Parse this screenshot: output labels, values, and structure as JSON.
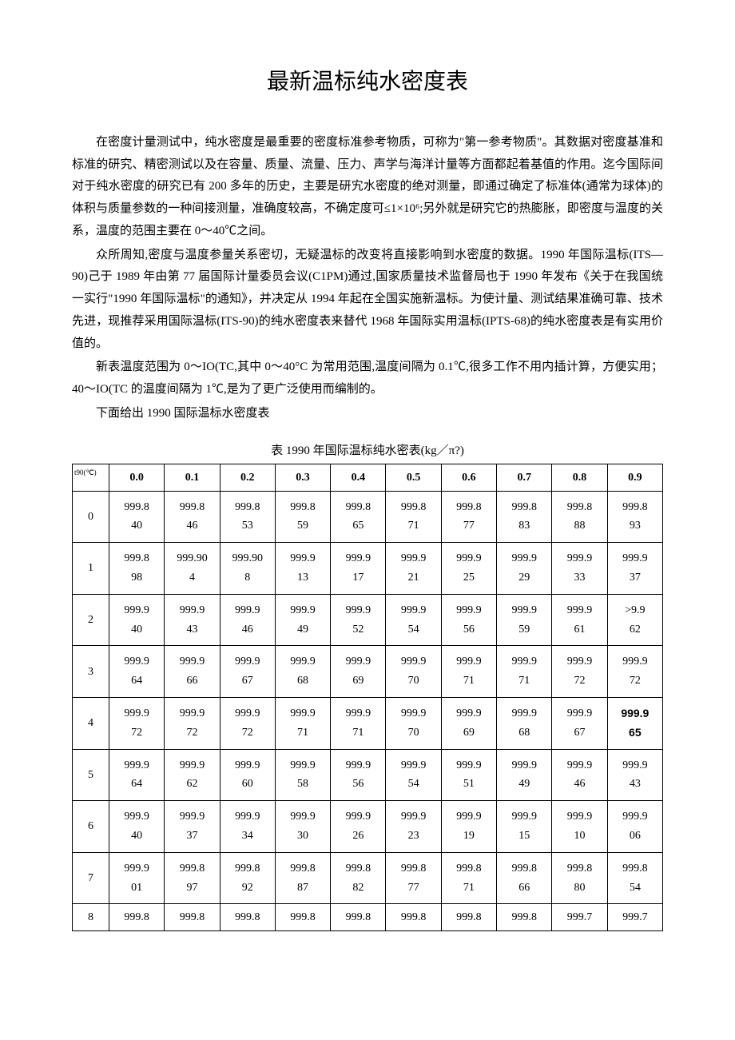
{
  "title": "最新温标纯水密度表",
  "paragraphs": [
    "在密度计量测试中，纯水密度是最重要的密度标准参考物质，可称为\"第一参考物质\"。其数据对密度基准和标准的研究、精密测试以及在容量、质量、流量、压力、声学与海洋计量等方面都起着基值的作用。迄今国际间对于纯水密度的研究已有 200 多年的历史，主要是研宄水密度的绝对测量，即通过确定了标准体(通常为球体)的体积与质量参数的一种间接测量，准确度较高，不确定度可≤1×10⁶;另外就是研究它的热膨胀，即密度与温度的关系，温度的范围主要在 0～40℃之间。",
    "众所周知,密度与温度参量关系密切，无疑温标的改变将直接影响到水密度的数据。1990 年国际温标(ITS—90)己于 1989 年由第 77 届国际计量委员会议(C1PM)通过,国家质量技术监督局也于 1990 年发布《关于在我国统一实行\"1990 年国际温标\"的通知》，并决定从 1994 年起在全国实施新温标。为使计量、测试结果准确可靠、技术先进，现推荐采用国际温标(ITS-90)的纯水密度表来替代 1968 年国际实用温标(IPTS-68)的纯水密度表是有实用价值的。",
    "新表温度范围为 0～IO(TC,其中 0～40°C 为常用范围,温度间隔为 0.1℃,很多工作不用内插计算，方便实用；40～IO(TC 的温度间隔为 1℃,是为了更广泛使用而编制的。",
    "下面给出 1990 国际温标水密度表"
  ],
  "table_caption": "表 1990 年国际温标纯水密表(kg／π?)",
  "header_first": "t90(℃)",
  "column_headers": [
    "0.0",
    "0.1",
    "0.2",
    "0.3",
    "0.4",
    "0.5",
    "0.6",
    "0.7",
    "0.8",
    "0.9"
  ],
  "rows": [
    {
      "label": "0",
      "cells": [
        "999.8\n40",
        "999.8\n46",
        "999.8\n53",
        "999.8\n59",
        "999.8\n65",
        "999.8\n71",
        "999.8\n77",
        "999.8\n83",
        "999.8\n88",
        "999.8\n93"
      ]
    },
    {
      "label": "1",
      "cells": [
        "999.8\n98",
        "999.90\n4",
        "999.90\n8",
        "999.9\n13",
        "999.9\n17",
        "999.9\n21",
        "999.9\n25",
        "999.9\n29",
        "999.9\n33",
        "999.9\n37"
      ]
    },
    {
      "label": "2",
      "cells": [
        "999.9\n40",
        "999.9\n43",
        "999.9\n46",
        "999.9\n49",
        "999.9\n52",
        "999.9\n54",
        "999.9\n56",
        "999.9\n59",
        "999.9\n61",
        ">9.9\n62"
      ]
    },
    {
      "label": "3",
      "cells": [
        "999.9\n64",
        "999.9\n66",
        "999.9\n67",
        "999.9\n68",
        "999.9\n69",
        "999.9\n70",
        "999.9\n71",
        "999.9\n71",
        "999.9\n72",
        "999.9\n72"
      ]
    },
    {
      "label": "4",
      "cells": [
        "999.9\n72",
        "999.9\n72",
        "999.9\n72",
        "999.9\n71",
        "999.9\n71",
        "999.9\n70",
        "999.9\n69",
        "999.9\n68",
        "999.9\n67",
        "999.9\n65"
      ],
      "bold_last": true
    },
    {
      "label": "5",
      "cells": [
        "999.9\n64",
        "999.9\n62",
        "999.9\n60",
        "999.9\n58",
        "999.9\n56",
        "999.9\n54",
        "999.9\n51",
        "999.9\n49",
        "999.9\n46",
        "999.9\n43"
      ]
    },
    {
      "label": "6",
      "cells": [
        "999.9\n40",
        "999.9\n37",
        "999.9\n34",
        "999.9\n30",
        "999.9\n26",
        "999.9\n23",
        "999.9\n19",
        "999.9\n15",
        "999.9\n10",
        "999.9\n06"
      ]
    },
    {
      "label": "7",
      "cells": [
        "999.9\n01",
        "999.8\n97",
        "999.8\n92",
        "999.8\n87",
        "999.8\n82",
        "999.8\n77",
        "999.8\n71",
        "999.8\n66",
        "999.8\n80",
        "999.8\n54"
      ]
    },
    {
      "label": "8",
      "cells": [
        "999.8",
        "999.8",
        "999.8",
        "999.8",
        "999.8",
        "999.8",
        "999.8",
        "999.8",
        "999.7",
        "999.7"
      ]
    }
  ],
  "colors": {
    "background": "#ffffff",
    "text": "#000000",
    "border": "#000000"
  }
}
